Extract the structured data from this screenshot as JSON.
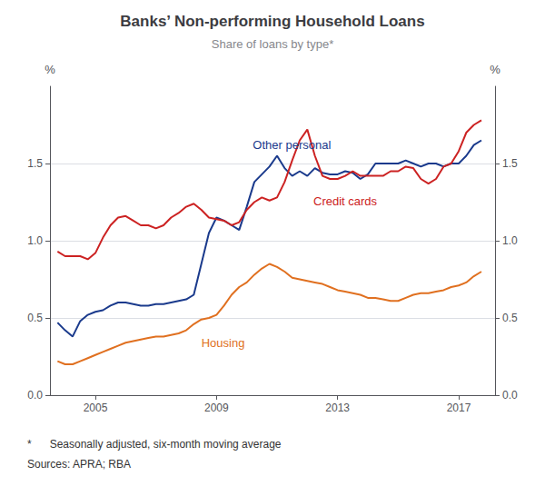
{
  "chart_data": {
    "type": "line",
    "title": "Banks’ Non-performing Household Loans",
    "subtitle": "Share of loans by type*",
    "y_label": "%",
    "y2_label": "%",
    "notes": [
      "*      Seasonally adjusted, six-month moving average",
      "Sources: APRA; RBA"
    ],
    "grid": true,
    "xlim": [
      2003.5,
      2018.2
    ],
    "xticks": [
      2005,
      2009,
      2013,
      2017
    ],
    "ylim": [
      0.0,
      2.0
    ],
    "yticks": [
      {
        "value": 0.0,
        "label": "0.0"
      },
      0.5,
      {
        "value": 1.0,
        "label": "1.0"
      },
      1.5
    ],
    "y2lim": [
      0.0,
      2.0
    ],
    "y2ticks": [
      {
        "value": 0.0,
        "label": "0.0"
      },
      0.5,
      {
        "value": 1.0,
        "label": "1.0"
      },
      1.5
    ],
    "x": [
      2003.75,
      2004.0,
      2004.25,
      2004.5,
      2004.75,
      2005.0,
      2005.25,
      2005.5,
      2005.75,
      2006.0,
      2006.25,
      2006.5,
      2006.75,
      2007.0,
      2007.25,
      2007.5,
      2007.75,
      2008.0,
      2008.25,
      2008.5,
      2008.75,
      2009.0,
      2009.25,
      2009.5,
      2009.75,
      2010.0,
      2010.25,
      2010.5,
      2010.75,
      2011.0,
      2011.25,
      2011.5,
      2011.75,
      2012.0,
      2012.25,
      2012.5,
      2012.75,
      2013.0,
      2013.25,
      2013.5,
      2013.75,
      2014.0,
      2014.25,
      2014.5,
      2014.75,
      2015.0,
      2015.25,
      2015.5,
      2015.75,
      2016.0,
      2016.25,
      2016.5,
      2016.75,
      2017.0,
      2017.25,
      2017.5,
      2017.75
    ],
    "series": [
      {
        "name": "Other personal",
        "color": "#1a3a8c",
        "values": [
          0.47,
          0.42,
          0.38,
          0.48,
          0.52,
          0.54,
          0.55,
          0.58,
          0.6,
          0.6,
          0.59,
          0.58,
          0.58,
          0.59,
          0.59,
          0.6,
          0.61,
          0.62,
          0.65,
          0.85,
          1.05,
          1.15,
          1.13,
          1.1,
          1.07,
          1.22,
          1.38,
          1.43,
          1.48,
          1.55,
          1.47,
          1.42,
          1.45,
          1.42,
          1.47,
          1.44,
          1.43,
          1.43,
          1.45,
          1.44,
          1.4,
          1.43,
          1.5,
          1.5,
          1.5,
          1.5,
          1.52,
          1.5,
          1.48,
          1.5,
          1.5,
          1.48,
          1.5,
          1.5,
          1.55,
          1.62,
          1.65
        ]
      },
      {
        "name": "Credit cards",
        "color": "#cc2222",
        "values": [
          0.93,
          0.9,
          0.9,
          0.9,
          0.88,
          0.92,
          1.02,
          1.1,
          1.15,
          1.16,
          1.13,
          1.1,
          1.1,
          1.08,
          1.1,
          1.15,
          1.18,
          1.22,
          1.24,
          1.2,
          1.15,
          1.14,
          1.13,
          1.1,
          1.12,
          1.2,
          1.25,
          1.28,
          1.26,
          1.28,
          1.38,
          1.52,
          1.65,
          1.72,
          1.55,
          1.42,
          1.4,
          1.4,
          1.42,
          1.45,
          1.42,
          1.42,
          1.42,
          1.42,
          1.45,
          1.45,
          1.48,
          1.47,
          1.4,
          1.37,
          1.4,
          1.48,
          1.5,
          1.58,
          1.7,
          1.75,
          1.78
        ]
      },
      {
        "name": "Housing",
        "color": "#e07020",
        "values": [
          0.22,
          0.2,
          0.2,
          0.22,
          0.24,
          0.26,
          0.28,
          0.3,
          0.32,
          0.34,
          0.35,
          0.36,
          0.37,
          0.38,
          0.38,
          0.39,
          0.4,
          0.42,
          0.46,
          0.49,
          0.5,
          0.52,
          0.58,
          0.65,
          0.7,
          0.73,
          0.78,
          0.82,
          0.85,
          0.83,
          0.8,
          0.76,
          0.75,
          0.74,
          0.73,
          0.72,
          0.7,
          0.68,
          0.67,
          0.66,
          0.65,
          0.63,
          0.63,
          0.62,
          0.61,
          0.61,
          0.63,
          0.65,
          0.66,
          0.66,
          0.67,
          0.68,
          0.7,
          0.71,
          0.73,
          0.77,
          0.8
        ]
      }
    ],
    "annotations": [
      {
        "text": "Other personal",
        "x": 2010.2,
        "y": 1.58,
        "color": "#1a3a8c"
      },
      {
        "text": "Credit cards",
        "x": 2012.2,
        "y": 1.22,
        "color": "#cc2222"
      },
      {
        "text": "Housing",
        "x": 2008.5,
        "y": 0.3,
        "color": "#e07020"
      }
    ]
  }
}
